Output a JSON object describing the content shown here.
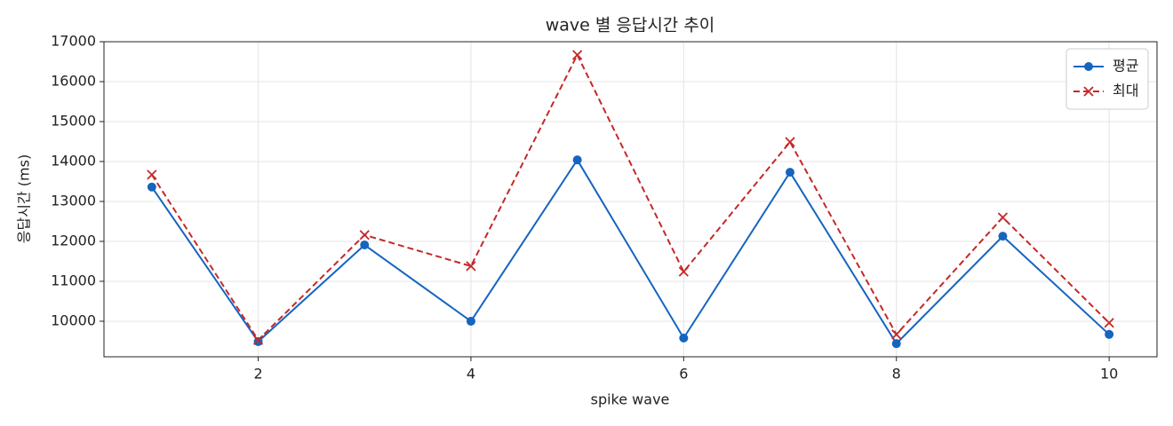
{
  "chart_data": {
    "type": "line",
    "title": "wave 별 응답시간 추이",
    "x_label": "spike wave",
    "y_label": "응답시간 (ms)",
    "x": [
      1,
      2,
      3,
      4,
      5,
      6,
      7,
      8,
      9,
      10
    ],
    "series": [
      {
        "name": "평균",
        "color": "#1565c0",
        "line_style": "solid",
        "marker": "circle",
        "values": [
          13360,
          9490,
          11910,
          10000,
          14040,
          9580,
          13730,
          9440,
          12130,
          9670
        ]
      },
      {
        "name": "최대",
        "color": "#c62828",
        "line_style": "dashed",
        "marker": "x",
        "values": [
          13670,
          9530,
          12160,
          11380,
          16670,
          11240,
          14490,
          9670,
          12600,
          9960
        ]
      }
    ],
    "xlim": [
      0.55,
      10.45
    ],
    "xticks": [
      2,
      4,
      6,
      8,
      10
    ],
    "ylim": [
      9110,
      17000
    ],
    "yticks": [
      10000,
      11000,
      12000,
      13000,
      14000,
      15000,
      16000,
      17000
    ],
    "grid": true,
    "legend": "upper right"
  }
}
